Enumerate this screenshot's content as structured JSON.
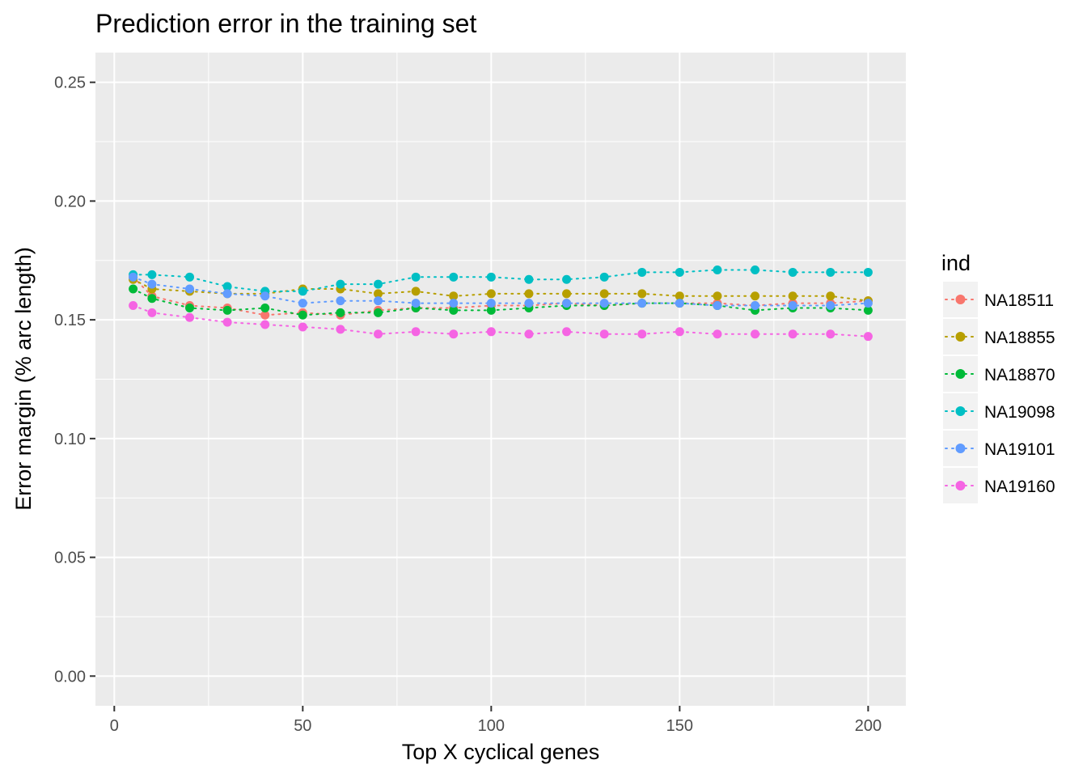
{
  "chart_data": {
    "type": "line",
    "title": "Prediction error in the training set",
    "xlabel": "Top X cyclical genes",
    "ylabel": "Error margin (% arc length)",
    "xlim": [
      -5,
      210
    ],
    "ylim": [
      -0.0125,
      0.2625
    ],
    "x_ticks": [
      0,
      50,
      100,
      150,
      200
    ],
    "x_tick_labels": [
      "0",
      "50",
      "100",
      "150",
      "200"
    ],
    "y_ticks": [
      0,
      0.05,
      0.1,
      0.15,
      0.2,
      0.25
    ],
    "y_tick_labels": [
      "0.00",
      "0.05",
      "0.10",
      "0.15",
      "0.20",
      "0.25"
    ],
    "grid": true,
    "line_style": "dotted",
    "markers": "points",
    "legend_title": "ind",
    "legend_position": "right",
    "x": [
      5,
      10,
      20,
      30,
      40,
      50,
      60,
      70,
      80,
      90,
      100,
      110,
      120,
      130,
      140,
      150,
      160,
      170,
      180,
      190,
      200
    ],
    "series": [
      {
        "name": "NA18511",
        "color": "#F8766D",
        "values": [
          0.168,
          0.16,
          0.156,
          0.155,
          0.152,
          0.153,
          0.152,
          0.154,
          0.155,
          0.155,
          0.156,
          0.156,
          0.157,
          0.156,
          0.157,
          0.157,
          0.157,
          0.156,
          0.157,
          0.157,
          0.158
        ]
      },
      {
        "name": "NA18855",
        "color": "#B79F00",
        "values": [
          0.167,
          0.163,
          0.162,
          0.161,
          0.161,
          0.163,
          0.163,
          0.161,
          0.162,
          0.16,
          0.161,
          0.161,
          0.161,
          0.161,
          0.161,
          0.16,
          0.16,
          0.16,
          0.16,
          0.16,
          0.158
        ]
      },
      {
        "name": "NA18870",
        "color": "#00BA38",
        "values": [
          0.163,
          0.159,
          0.155,
          0.154,
          0.155,
          0.152,
          0.153,
          0.153,
          0.155,
          0.154,
          0.154,
          0.155,
          0.156,
          0.156,
          0.157,
          0.157,
          0.156,
          0.154,
          0.155,
          0.155,
          0.154
        ]
      },
      {
        "name": "NA19098",
        "color": "#00BFC4",
        "values": [
          0.169,
          0.169,
          0.168,
          0.164,
          0.162,
          0.162,
          0.165,
          0.165,
          0.168,
          0.168,
          0.168,
          0.167,
          0.167,
          0.168,
          0.17,
          0.17,
          0.171,
          0.171,
          0.17,
          0.17,
          0.17
        ]
      },
      {
        "name": "NA19101",
        "color": "#619CFF",
        "values": [
          0.168,
          0.165,
          0.163,
          0.161,
          0.16,
          0.157,
          0.158,
          0.158,
          0.157,
          0.157,
          0.157,
          0.157,
          0.157,
          0.157,
          0.157,
          0.157,
          0.156,
          0.156,
          0.156,
          0.156,
          0.157
        ]
      },
      {
        "name": "NA19160",
        "color": "#F564E3",
        "values": [
          0.156,
          0.153,
          0.151,
          0.149,
          0.148,
          0.147,
          0.146,
          0.144,
          0.145,
          0.144,
          0.145,
          0.144,
          0.145,
          0.144,
          0.144,
          0.145,
          0.144,
          0.144,
          0.144,
          0.144,
          0.143
        ]
      }
    ]
  },
  "colors": {
    "panel_background": "#EBEBEB",
    "grid_major": "#FFFFFF",
    "tick_text": "#4D4D4D",
    "legend_key_background": "#F2F2F2"
  }
}
